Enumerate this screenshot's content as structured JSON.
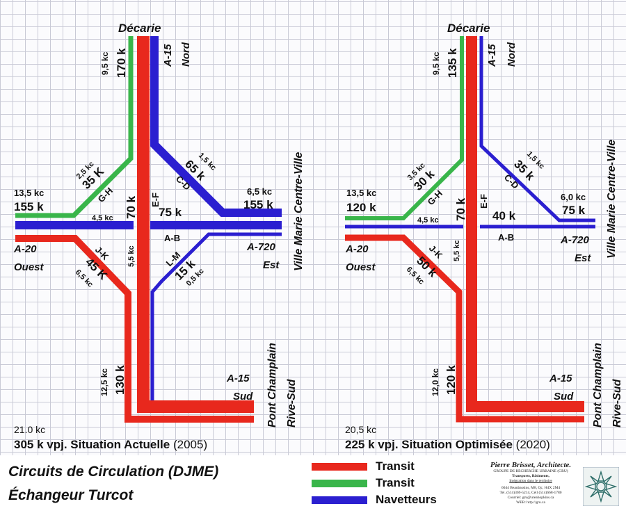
{
  "colors": {
    "transit_red": "#e8281d",
    "transit_green": "#39b54a",
    "commuters_blue": "#2b1fd0",
    "grid": "#c9cad6"
  },
  "diagram_left": {
    "north_road": "Décarie",
    "north_a15": "A-15",
    "north_dir": "Nord",
    "ne_road": "Ville Marie Centre-Ville",
    "west_road": "A-20",
    "west_dir": "Ouest",
    "east_road": "A-720",
    "east_dir": "Est",
    "south_road": "A-15",
    "south_dir": "Sud",
    "se_road_1": "Pont Champlain",
    "se_road_2": "Rive-Sud",
    "n_kc": "9,5 kc",
    "n_k": "170 k",
    "gh_kc": "2,5 kc",
    "gh_k": "35 K",
    "gh_id": "G-H",
    "cd_kc": "1,5 kc",
    "cd_k": "65 k",
    "cd_id": "C-D",
    "w_kc": "13,5 kc",
    "w_k": "155 k",
    "ew_kc": "4,5 kc",
    "ew_k": "70 k",
    "ef_id": "E-F",
    "ab_k": "75 k",
    "ab_id": "A-B",
    "e_kc": "6,5 kc",
    "e_k": "155 k",
    "jk_id": "J-K",
    "jk_kc": "5,5 kc",
    "jk_k": "45 K",
    "jk_kc2": "6,5 kc",
    "lm_id": "L-M",
    "lm_k": "15 k",
    "lm_kc": "0,5 kc",
    "s_kc": "12,5 kc",
    "s_k": "130 k",
    "total_kc": "21.0 kc",
    "total": "305 k vpj.",
    "situation": "Situation Actuelle",
    "year": "(2005)"
  },
  "diagram_right": {
    "north_road": "Décarie",
    "north_a15": "A-15",
    "north_dir": "Nord",
    "ne_road": "Ville Marie Centre-Ville",
    "west_road": "A-20",
    "west_dir": "Ouest",
    "east_road": "A-720",
    "east_dir": "Est",
    "south_road": "A-15",
    "south_dir": "Sud",
    "se_road_1": "Pont Champlain",
    "se_road_2": "Rive-Sud",
    "n_kc": "9,5 kc",
    "n_k": "135 k",
    "gh_kc": "3,5 kc",
    "gh_k": "30 k",
    "gh_id": "G-H",
    "cd_kc": "1,5 kc",
    "cd_k": "35 k",
    "cd_id": "C-D",
    "w_kc": "13,5 kc",
    "w_k": "120 k",
    "ew_kc": "4,5 kc",
    "ew_k": "70 k",
    "ef_id": "E-F",
    "ab_k": "40 k",
    "ab_id": "A-B",
    "e_kc": "6,0 kc",
    "e_k": "75 k",
    "jk_id": "J-K",
    "jk_kc": "5,5 kc",
    "jk_k": "50 k",
    "jk_kc2": "6,5 kc",
    "s_kc": "12,0 kc",
    "s_k": "120 k",
    "total_kc": "20,5 kc",
    "total": "225 k vpj.",
    "situation": "Situation Optimisée",
    "year": "(2020)"
  },
  "footer": {
    "title_1a": "Circuits de  Circulation",
    "title_1b": "(DJME)",
    "title_2": "Échangeur Turcot",
    "legend": [
      {
        "label": "Transit"
      },
      {
        "label": "Transit"
      },
      {
        "label": "Navetteurs"
      }
    ],
    "credit_name": "Pierre Brisset, Architecte.",
    "credit_org": "GROUPE DE RECHERCHE URBAINE (GRU)",
    "credit_line1": "Transports, Bâtiments,",
    "credit_line2": "Intégration dans le territoire",
    "credit_addr": "6044 Beaubassins, M8, Qc, H4X 2M4",
    "credit_tel": "Tel. (514)369-5214, Cell (514)668-1780",
    "credit_mail": "Courriel: gru@ureahopkins.ca",
    "credit_web": "WEB: http://gru.ca"
  }
}
